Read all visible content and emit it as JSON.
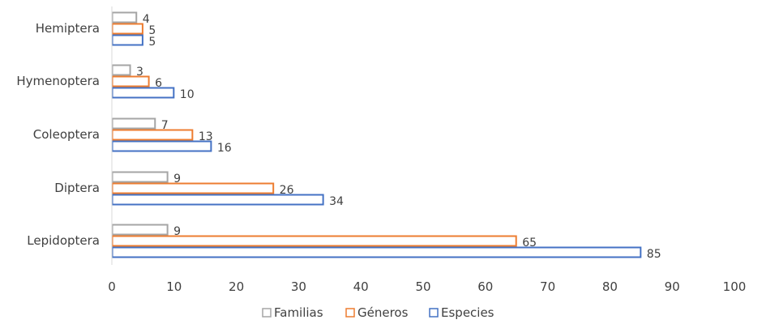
{
  "chart_data": {
    "type": "bar",
    "orientation": "horizontal",
    "categories": [
      "Hemiptera",
      "Hymenoptera",
      "Coleoptera",
      "Diptera",
      "Lepidoptera"
    ],
    "series": [
      {
        "name": "Familias",
        "values": [
          4,
          3,
          7,
          9,
          9
        ],
        "color": "#a5a5a5"
      },
      {
        "name": "Géneros",
        "values": [
          5,
          6,
          13,
          26,
          65
        ],
        "color": "#ed7d31"
      },
      {
        "name": "Especies",
        "values": [
          5,
          10,
          16,
          34,
          85
        ],
        "color": "#4472c4"
      }
    ],
    "xlim": [
      0,
      100
    ],
    "xticks": [
      "0",
      "10",
      "20",
      "30",
      "40",
      "50",
      "60",
      "70",
      "80",
      "90",
      "100"
    ],
    "title": "",
    "xlabel": "",
    "ylabel": "",
    "grid": false,
    "bar_style": "outline",
    "legend_position": "bottom"
  }
}
